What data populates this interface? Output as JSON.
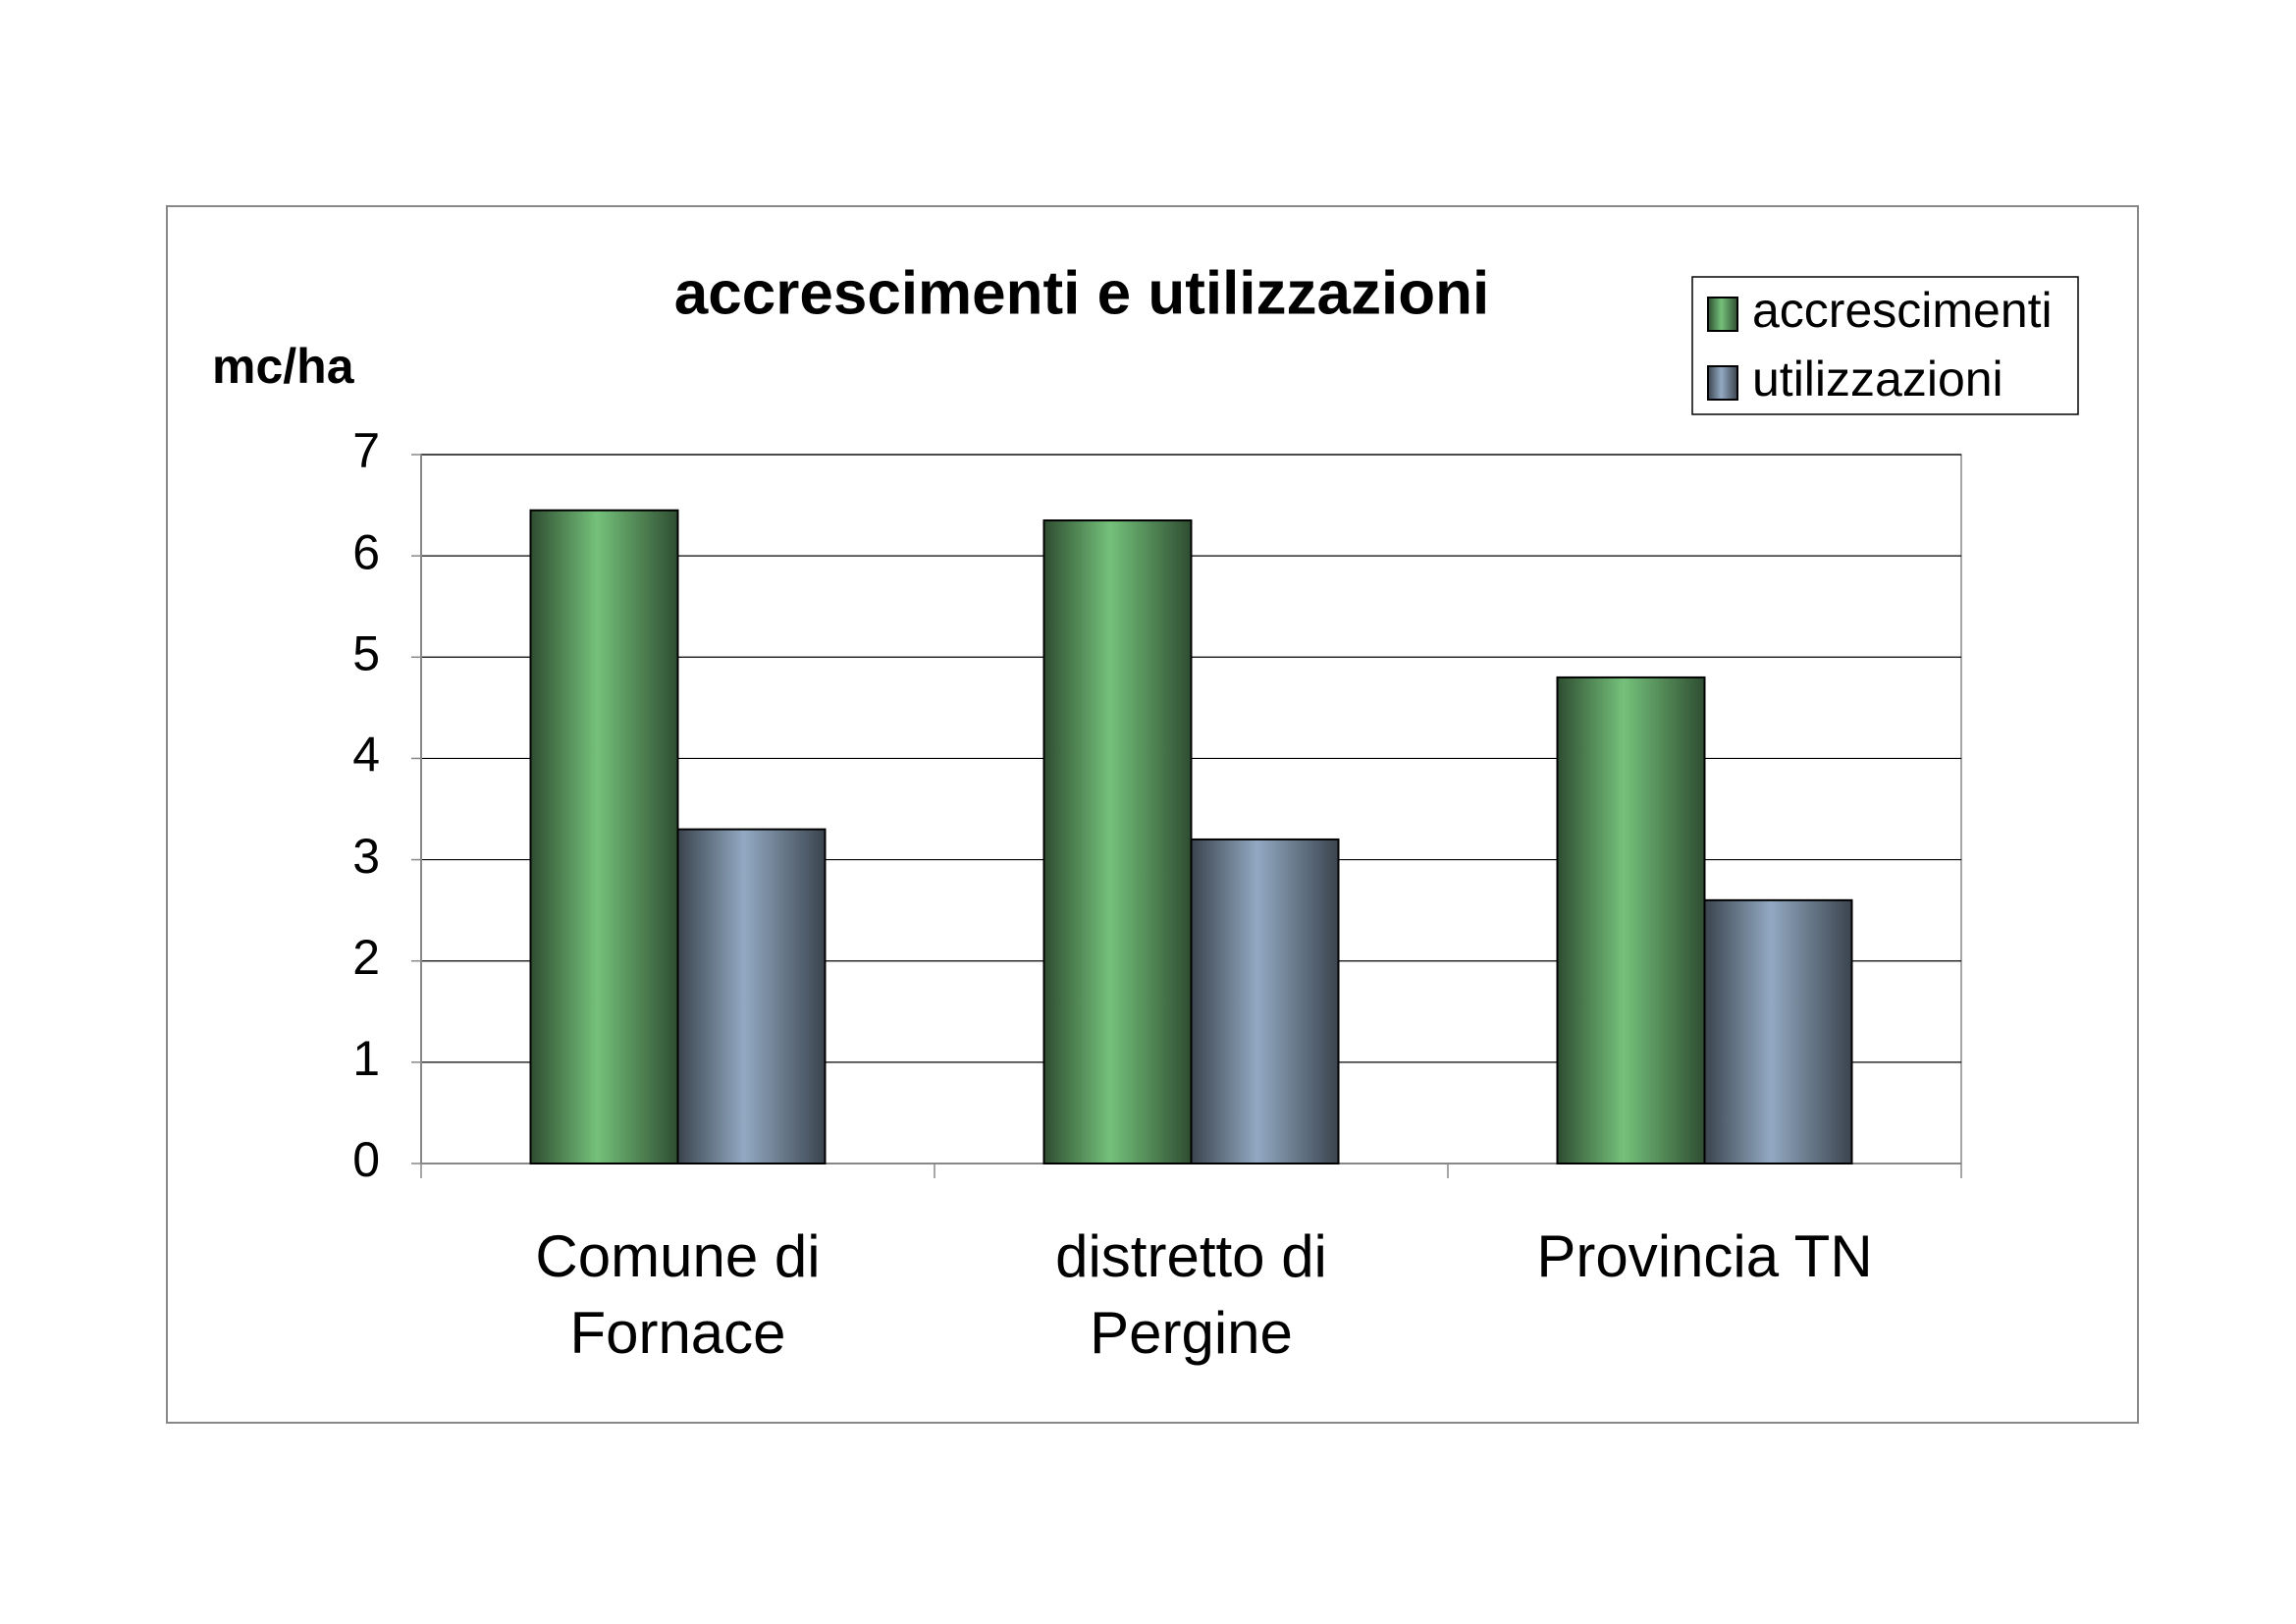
{
  "chart_data": {
    "type": "bar",
    "title": "accrescimenti e utilizzazioni",
    "y_label": "mc/ha",
    "categories": [
      "Comune di\nFornace",
      "distretto di\nPergine",
      "Provincia TN"
    ],
    "series": [
      {
        "name": "accrescimenti",
        "color": "#74c17a",
        "values": [
          6.45,
          6.35,
          4.8
        ]
      },
      {
        "name": "utilizzazioni",
        "color": "#92a9c2",
        "values": [
          3.3,
          3.2,
          2.6
        ]
      }
    ],
    "ylim": [
      0,
      7
    ],
    "yticks": [
      0,
      1,
      2,
      3,
      4,
      5,
      6,
      7
    ],
    "grid": true,
    "legend": "top-right"
  }
}
